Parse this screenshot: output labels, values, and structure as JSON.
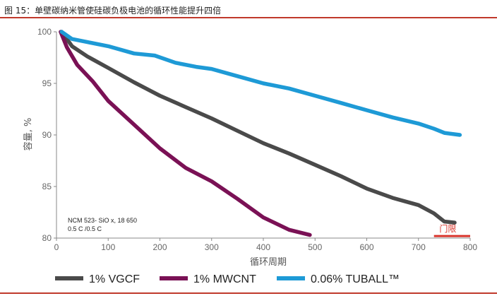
{
  "figure_title": "图 15：单壁碳纳米管使硅碳负极电池的循环性能提升四倍",
  "chart_data": {
    "type": "line",
    "xlabel": "循环周期",
    "ylabel": "容量, %",
    "xlim": [
      0,
      800
    ],
    "ylim": [
      80,
      100
    ],
    "x_ticks": [
      0,
      100,
      200,
      300,
      400,
      500,
      600,
      700,
      800
    ],
    "y_ticks": [
      80,
      85,
      90,
      95,
      100
    ],
    "grid": false,
    "legend_position": "bottom",
    "annotation": {
      "line1": "NCM 523-  SiO x, 18 650",
      "line2": "0.5 C /0.5 C"
    },
    "threshold": {
      "label": "门限",
      "y": 80.2,
      "x_range": [
        730,
        800
      ],
      "color": "#d9342b"
    },
    "series": [
      {
        "name": "1% VGCF",
        "color": "#4a4a4a",
        "points": [
          [
            10,
            100
          ],
          [
            30,
            98.6
          ],
          [
            60,
            97.6
          ],
          [
            100,
            96.5
          ],
          [
            150,
            95.1
          ],
          [
            200,
            93.8
          ],
          [
            250,
            92.7
          ],
          [
            300,
            91.6
          ],
          [
            350,
            90.4
          ],
          [
            400,
            89.2
          ],
          [
            450,
            88.2
          ],
          [
            500,
            87.1
          ],
          [
            550,
            86.0
          ],
          [
            600,
            84.8
          ],
          [
            650,
            83.9
          ],
          [
            700,
            83.2
          ],
          [
            730,
            82.4
          ],
          [
            750,
            81.6
          ],
          [
            770,
            81.5
          ]
        ]
      },
      {
        "name": "1% MWCNT",
        "color": "#7a1155",
        "points": [
          [
            8,
            100
          ],
          [
            20,
            98.5
          ],
          [
            40,
            96.8
          ],
          [
            70,
            95.2
          ],
          [
            100,
            93.3
          ],
          [
            150,
            91.0
          ],
          [
            200,
            88.7
          ],
          [
            250,
            86.8
          ],
          [
            300,
            85.5
          ],
          [
            350,
            83.8
          ],
          [
            400,
            82.0
          ],
          [
            450,
            80.8
          ],
          [
            490,
            80.3
          ]
        ]
      },
      {
        "name": "0.06% TUBALL™",
        "color": "#1e9ad6",
        "points": [
          [
            10,
            100
          ],
          [
            30,
            99.3
          ],
          [
            60,
            99.0
          ],
          [
            100,
            98.6
          ],
          [
            150,
            97.9
          ],
          [
            190,
            97.7
          ],
          [
            230,
            97.0
          ],
          [
            270,
            96.6
          ],
          [
            300,
            96.4
          ],
          [
            350,
            95.7
          ],
          [
            400,
            95.0
          ],
          [
            450,
            94.5
          ],
          [
            500,
            93.8
          ],
          [
            550,
            93.1
          ],
          [
            600,
            92.4
          ],
          [
            650,
            91.7
          ],
          [
            700,
            91.1
          ],
          [
            730,
            90.6
          ],
          [
            750,
            90.2
          ],
          [
            780,
            90.0
          ]
        ]
      }
    ]
  }
}
